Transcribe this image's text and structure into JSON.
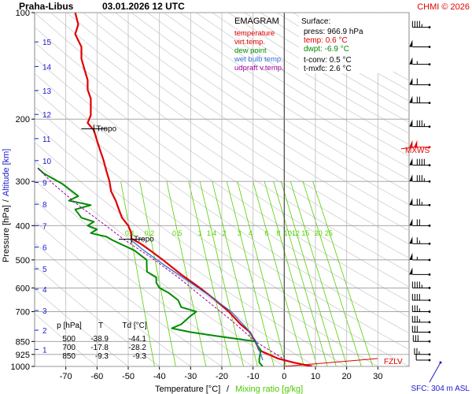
{
  "header": {
    "station": "Praha-Libus",
    "datetime": "03.01.2026 12 UTC",
    "credit": "CHMI © 2026"
  },
  "colors": {
    "temperature": "#e00000",
    "virt_temp": "#e00000",
    "dew_point": "#008c00",
    "wet_bulb": "#2f6fd6",
    "updraft": "#a000a0",
    "mixing": "#55d000",
    "grid": "#9a9a9a",
    "wind": "#000000",
    "altitude": "#1a1ad0"
  },
  "chart_data": {
    "type": "line",
    "title": "EMAGRAM",
    "xlabel": "Temperature [°C]",
    "xlabel_sep": "/",
    "xlabel2": "Mixing ratio [g/kg]",
    "ylabel": "Pressure [hPa]",
    "ylabel_sep": "/",
    "ylabel2": "Altitude [km]",
    "xlim": [
      -80,
      40
    ],
    "ylim": [
      1000,
      100
    ],
    "y_scale": "log",
    "x_ticks": [
      -70,
      -60,
      -50,
      -40,
      -30,
      -20,
      -10,
      0,
      10,
      20,
      30
    ],
    "p_ticks": [
      100,
      200,
      300,
      400,
      500,
      600,
      700,
      850,
      925,
      1000
    ],
    "alt_ticks": [
      {
        "km": "1",
        "p": 895
      },
      {
        "km": "2",
        "p": 790
      },
      {
        "km": "3",
        "p": 695
      },
      {
        "km": "4",
        "p": 605
      },
      {
        "km": "5",
        "p": 530
      },
      {
        "km": "6",
        "p": 460
      },
      {
        "km": "7",
        "p": 400
      },
      {
        "km": "8",
        "p": 348
      },
      {
        "km": "9",
        "p": 302
      },
      {
        "km": "10",
        "p": 262
      },
      {
        "km": "11",
        "p": 227
      },
      {
        "km": "12",
        "p": 194
      },
      {
        "km": "13",
        "p": 166
      },
      {
        "km": "14",
        "p": 142
      },
      {
        "km": "15",
        "p": 121
      }
    ],
    "mixing_ratio_labels": [
      "0.1",
      "0.2",
      "0.5",
      "1",
      "1.4",
      "2",
      "3",
      "4",
      "6",
      "8",
      "10",
      "12",
      "15",
      "20",
      "25"
    ],
    "legend": [
      {
        "label": "temperature",
        "color": "#e00000"
      },
      {
        "label": "virt.temp.",
        "color": "#e00000"
      },
      {
        "label": "dew point",
        "color": "#008c00"
      },
      {
        "label": "wet bulb temp.",
        "color": "#2f6fd6"
      },
      {
        "label": "udpraft v.temp.",
        "color": "#a000a0"
      }
    ],
    "series": [
      {
        "name": "temperature",
        "color": "#e00000",
        "points": [
          [
            9,
            1000
          ],
          [
            3,
            975
          ],
          [
            -2,
            950
          ],
          [
            -8,
            900
          ],
          [
            -8.6,
            875
          ],
          [
            -9.3,
            850
          ],
          [
            -11,
            800
          ],
          [
            -14,
            760
          ],
          [
            -17.8,
            700
          ],
          [
            -22,
            650
          ],
          [
            -27,
            600
          ],
          [
            -33,
            550
          ],
          [
            -38.9,
            500
          ],
          [
            -43,
            470
          ],
          [
            -46,
            450
          ],
          [
            -49,
            435
          ],
          [
            -49,
            420
          ],
          [
            -50,
            400
          ],
          [
            -52,
            380
          ],
          [
            -53,
            360
          ],
          [
            -54,
            340
          ],
          [
            -55.5,
            320
          ],
          [
            -56,
            300
          ],
          [
            -57,
            280
          ],
          [
            -58,
            260
          ],
          [
            -59,
            245
          ],
          [
            -60,
            230
          ],
          [
            -61,
            215
          ],
          [
            -63,
            205
          ],
          [
            -62,
            195
          ],
          [
            -62,
            185
          ],
          [
            -62,
            175
          ],
          [
            -63,
            165
          ],
          [
            -63,
            155
          ],
          [
            -64,
            145
          ],
          [
            -65,
            135
          ],
          [
            -65,
            125
          ],
          [
            -67,
            115
          ],
          [
            -66,
            108
          ],
          [
            -67,
            100
          ]
        ]
      },
      {
        "name": "dew point",
        "color": "#008c00",
        "points": [
          [
            -6.9,
            1000
          ],
          [
            -8,
            975
          ],
          [
            -8,
            950
          ],
          [
            -7.5,
            900
          ],
          [
            -8.5,
            875
          ],
          [
            -9.3,
            850
          ],
          [
            -22,
            820
          ],
          [
            -30,
            800
          ],
          [
            -36,
            780
          ],
          [
            -33,
            760
          ],
          [
            -30,
            720
          ],
          [
            -28.2,
            700
          ],
          [
            -33,
            680
          ],
          [
            -34,
            650
          ],
          [
            -37,
            620
          ],
          [
            -40,
            600
          ],
          [
            -41,
            580
          ],
          [
            -41,
            560
          ],
          [
            -44,
            540
          ],
          [
            -44.1,
            500
          ],
          [
            -48,
            470
          ],
          [
            -55,
            440
          ],
          [
            -57,
            430
          ],
          [
            -62,
            420
          ],
          [
            -60,
            410
          ],
          [
            -63,
            400
          ],
          [
            -61,
            390
          ],
          [
            -65,
            380
          ],
          [
            -67,
            360
          ],
          [
            -62,
            350
          ],
          [
            -69,
            340
          ],
          [
            -66,
            330
          ],
          [
            -68,
            320
          ],
          [
            -71,
            305
          ],
          [
            -74,
            295
          ],
          [
            -77,
            285
          ],
          [
            -79,
            275
          ]
        ]
      },
      {
        "name": "wet bulb temp.",
        "color": "#2f6fd6",
        "points": [
          [
            -6.9,
            960
          ],
          [
            -9,
            850
          ],
          [
            -12,
            780
          ],
          [
            -17,
            700
          ],
          [
            -23,
            640
          ],
          [
            -30,
            580
          ],
          [
            -38,
            520
          ],
          [
            -45,
            470
          ],
          [
            -49,
            440
          ]
        ]
      },
      {
        "name": "udpraft v.temp.",
        "color": "#a000a0",
        "points": [
          [
            0.5,
            960
          ],
          [
            -9.3,
            850
          ],
          [
            -17,
            740
          ],
          [
            -25,
            650
          ],
          [
            -34,
            560
          ],
          [
            -43,
            490
          ],
          [
            -51,
            440
          ],
          [
            -58,
            395
          ],
          [
            -66,
            350
          ],
          [
            -74,
            305
          ],
          [
            -79,
            275
          ]
        ]
      }
    ],
    "tropopauses": [
      {
        "label": "Tropo",
        "t": -61,
        "p": 213
      },
      {
        "label": "Tropo",
        "t": -49,
        "p": 437
      }
    ],
    "levels": [
      {
        "label": "MXWS",
        "p": 240
      },
      {
        "label": "FZLV",
        "p": 980
      }
    ],
    "table": {
      "headers": [
        "p [hPa]",
        "T",
        "Td [°C]"
      ],
      "rows": [
        [
          "500",
          "-38.9",
          "-44.1"
        ],
        [
          "700",
          "-17.8",
          "-28.2"
        ],
        [
          "850",
          "-9.3",
          "-9.3"
        ]
      ]
    },
    "surface": {
      "title": "Surface:",
      "press": "press: 966.9 hPa",
      "temp": "temp: 0.6 °C",
      "dwpt": "dwpt: -6.9 °C",
      "tconv": "t-conv: 0.5 °C",
      "tmxfc": "t-mxfc: 2.6 °C"
    },
    "sfc_label": "SFC: 304 m ASL",
    "wind_levels": [
      {
        "p": 960,
        "dir": 230,
        "kt": 10
      },
      {
        "p": 925,
        "dir": 240,
        "kt": 25
      },
      {
        "p": 850,
        "dir": 250,
        "kt": 30
      },
      {
        "p": 800,
        "dir": 260,
        "kt": 30
      },
      {
        "p": 750,
        "dir": 260,
        "kt": 35
      },
      {
        "p": 700,
        "dir": 260,
        "kt": 35
      },
      {
        "p": 650,
        "dir": 260,
        "kt": 40
      },
      {
        "p": 600,
        "dir": 260,
        "kt": 45
      },
      {
        "p": 550,
        "dir": 260,
        "kt": 50
      },
      {
        "p": 500,
        "dir": 260,
        "kt": 55
      },
      {
        "p": 450,
        "dir": 260,
        "kt": 65
      },
      {
        "p": 400,
        "dir": 260,
        "kt": 70
      },
      {
        "p": 350,
        "dir": 260,
        "kt": 75
      },
      {
        "p": 300,
        "dir": 260,
        "kt": 85
      },
      {
        "p": 270,
        "dir": 260,
        "kt": 90
      },
      {
        "p": 240,
        "dir": 260,
        "kt": 100
      },
      {
        "p": 210,
        "dir": 260,
        "kt": 85
      },
      {
        "p": 180,
        "dir": 260,
        "kt": 70
      },
      {
        "p": 160,
        "dir": 260,
        "kt": 60
      },
      {
        "p": 140,
        "dir": 260,
        "kt": 55
      },
      {
        "p": 125,
        "dir": 260,
        "kt": 50
      },
      {
        "p": 110,
        "dir": 260,
        "kt": 45
      }
    ]
  }
}
